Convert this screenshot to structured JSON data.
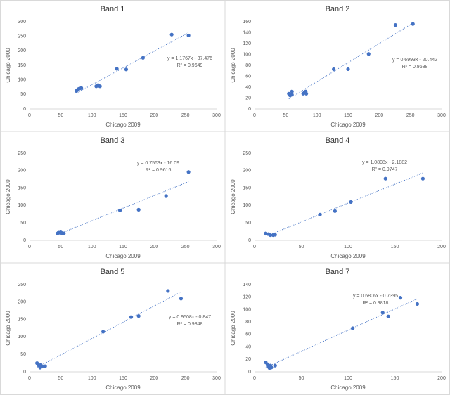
{
  "chart_data": [
    {
      "type": "scatter",
      "title": "Band 1",
      "x_label": "Chicago 2009",
      "y_label": "Chicago 2000",
      "color": "#4472c4",
      "trendline": "linear",
      "x": [
        75,
        78,
        80,
        83,
        107,
        110,
        113,
        140,
        155,
        182,
        228,
        255
      ],
      "y": [
        62,
        68,
        70,
        72,
        78,
        82,
        78,
        138,
        136,
        176,
        256,
        253
      ],
      "xlim": [
        0,
        300
      ],
      "xticks": [
        0,
        50,
        100,
        150,
        200,
        250,
        300
      ],
      "ylim": [
        0,
        300
      ],
      "yticks": [
        0,
        50,
        100,
        150,
        200,
        250,
        300
      ],
      "annotations": [
        "y = 1.1767x - 37.476",
        "R² = 0.9649"
      ]
    },
    {
      "type": "scatter",
      "title": "Band 2",
      "x_label": "Chicago 2009",
      "y_label": "Chicago 2000",
      "color": "#4472c4",
      "trendline": "linear",
      "x": [
        55,
        57,
        60,
        60,
        78,
        80,
        82,
        83,
        127,
        150,
        183,
        226,
        254
      ],
      "y": [
        28,
        25,
        32,
        26,
        28,
        30,
        32,
        28,
        73,
        73,
        101,
        154,
        156
      ],
      "xlim": [
        0,
        300
      ],
      "xticks": [
        0,
        50,
        100,
        150,
        200,
        250,
        300
      ],
      "ylim": [
        0,
        160
      ],
      "yticks": [
        0,
        20,
        40,
        60,
        80,
        100,
        120,
        140,
        160
      ],
      "annotations": [
        "y = 0.6993x - 20.442",
        "R² = 0.9688"
      ]
    },
    {
      "type": "scatter",
      "title": "Band 3",
      "x_label": "Chicago 2009",
      "y_label": "Chicago 2000",
      "color": "#4472c4",
      "trendline": "linear",
      "x": [
        45,
        47,
        48,
        50,
        52,
        55,
        145,
        175,
        219,
        255
      ],
      "y": [
        20,
        24,
        22,
        25,
        20,
        20,
        86,
        88,
        127,
        196
      ],
      "xlim": [
        0,
        300
      ],
      "xticks": [
        0,
        50,
        100,
        150,
        200,
        250,
        300
      ],
      "ylim": [
        0,
        250
      ],
      "yticks": [
        0,
        50,
        100,
        150,
        200,
        250
      ],
      "annotations": [
        "y = 0.7563x - 16.09",
        "R² = 0.9616"
      ]
    },
    {
      "type": "scatter",
      "title": "Band 4",
      "x_label": "Chicago 2009",
      "y_label": "Chicago 2000",
      "color": "#4472c4",
      "trendline": "linear",
      "x": [
        12,
        15,
        17,
        20,
        22,
        70,
        86,
        103,
        140,
        180
      ],
      "y": [
        20,
        18,
        15,
        15,
        16,
        74,
        84,
        110,
        177,
        177
      ],
      "xlim": [
        0,
        200
      ],
      "xticks": [
        0,
        50,
        100,
        150,
        200
      ],
      "ylim": [
        0,
        250
      ],
      "yticks": [
        0,
        50,
        100,
        150,
        200,
        250
      ],
      "annotations": [
        "y = 1.0808x - 2.1882",
        "R² = 0.9747"
      ]
    },
    {
      "type": "scatter",
      "title": "Band 5",
      "x_label": "Chicago 2009",
      "y_label": "Chicago 2000",
      "color": "#4472c4",
      "trendline": "linear",
      "x": [
        12,
        15,
        17,
        18,
        20,
        25,
        118,
        163,
        175,
        222,
        243
      ],
      "y": [
        25,
        18,
        12,
        20,
        15,
        16,
        115,
        157,
        160,
        232,
        210
      ],
      "xlim": [
        0,
        300
      ],
      "xticks": [
        0,
        50,
        100,
        150,
        200,
        250,
        300
      ],
      "ylim": [
        0,
        250
      ],
      "yticks": [
        0,
        50,
        100,
        150,
        200,
        250
      ],
      "annotations": [
        "y = 0.9508x - 0.847",
        "R² = 0.9848"
      ]
    },
    {
      "type": "scatter",
      "title": "Band 7",
      "x_label": "Chicago 2009",
      "y_label": "Chicago 2000",
      "color": "#4472c4",
      "trendline": "linear",
      "x": [
        12,
        14,
        15,
        16,
        17,
        18,
        22,
        105,
        137,
        143,
        156,
        174
      ],
      "y": [
        15,
        12,
        8,
        6,
        10,
        7,
        10,
        70,
        95,
        89,
        119,
        109
      ],
      "xlim": [
        0,
        200
      ],
      "xticks": [
        0,
        50,
        100,
        150,
        200
      ],
      "ylim": [
        0,
        140
      ],
      "yticks": [
        0,
        20,
        40,
        60,
        80,
        100,
        120,
        140
      ],
      "annotations": [
        "y = 0.6806x - 0.7395",
        "R² = 0.9818"
      ]
    }
  ]
}
